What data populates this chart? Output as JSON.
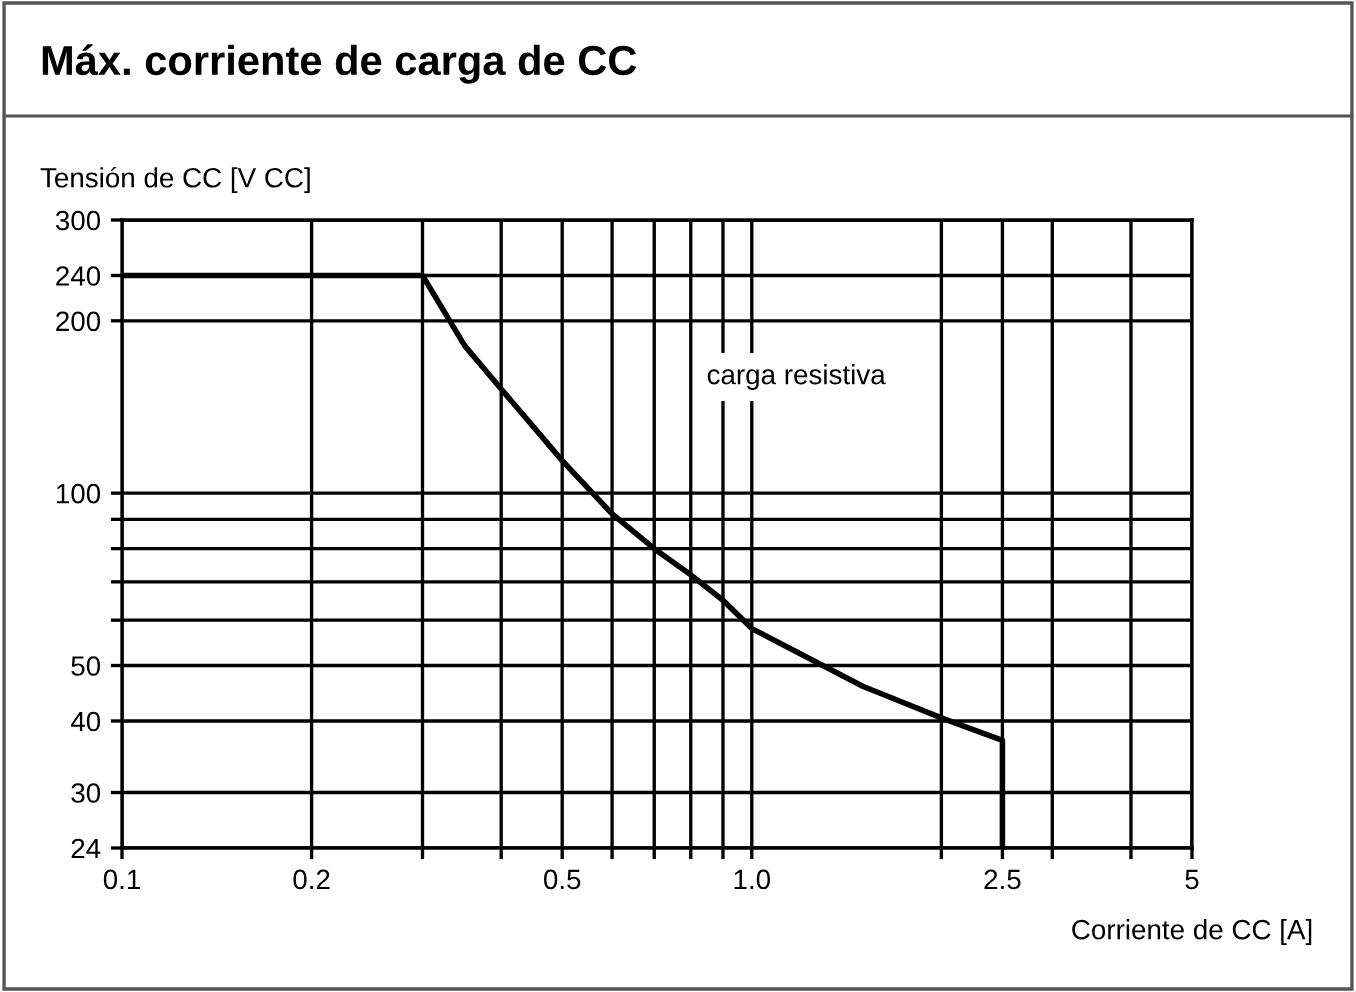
{
  "chart_data": {
    "type": "line",
    "title": "Máx. corriente de carga de CC",
    "ylabel": "Tensión de CC [V CC]",
    "xlabel": "Corriente de CC [A]",
    "log": "xy",
    "grid": true,
    "legend": false,
    "marker": "none",
    "line_style": "solid",
    "series": [
      {
        "color": "#000000",
        "x": [
          0.1,
          0.3,
          0.35,
          0.4,
          0.5,
          0.6,
          0.7,
          0.8,
          0.9,
          1.0,
          1.5,
          2.0,
          2.5,
          2.5
        ],
        "values": [
          240,
          240,
          181,
          152,
          114,
          92,
          80,
          72,
          65,
          58,
          46,
          40.5,
          37,
          24
        ]
      }
    ],
    "xlim": [
      0.1,
      5
    ],
    "ylim": [
      24,
      300
    ],
    "xticks": [
      0.1,
      0.2,
      {
        "value": 0.3,
        "label": null
      },
      {
        "value": 0.4,
        "label": null
      },
      0.5,
      {
        "value": 0.6,
        "label": null
      },
      {
        "value": 0.7,
        "label": null
      },
      {
        "value": 0.8,
        "label": null
      },
      {
        "value": 0.9,
        "label": null
      },
      {
        "value": 1.0,
        "label": "1.0"
      },
      {
        "value": 2,
        "label": null
      },
      2.5,
      {
        "value": 3,
        "label": null
      },
      {
        "value": 4,
        "label": null
      },
      5
    ],
    "yticks": [
      24,
      30,
      40,
      50,
      {
        "value": 60,
        "label": null
      },
      {
        "value": 70,
        "label": null
      },
      {
        "value": 80,
        "label": null
      },
      {
        "value": 90,
        "label": null
      },
      100,
      200,
      240,
      300
    ],
    "annotations": [
      "carga resistiva"
    ]
  }
}
